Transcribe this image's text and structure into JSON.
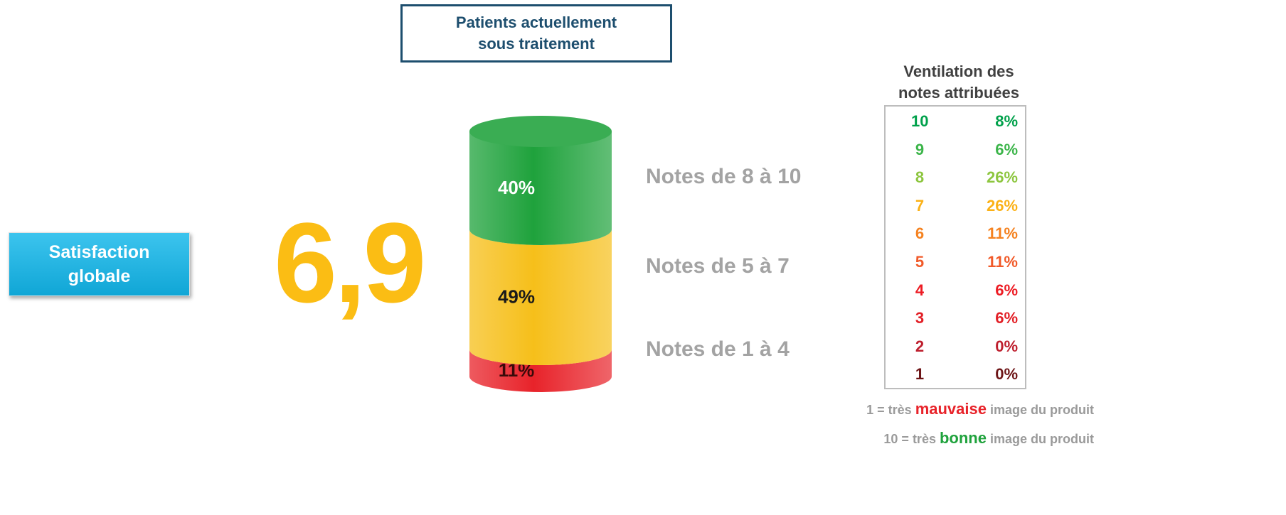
{
  "header": {
    "title_lines": [
      "Patients actuellement",
      "sous traitement"
    ]
  },
  "badge": {
    "lines": [
      "Satisfaction",
      "globale"
    ]
  },
  "score": "6,9",
  "cylinder": {
    "segments": [
      {
        "label": "Notes de 1 à 4",
        "value": 11,
        "value_label": "11%",
        "color": "#e8232a",
        "text_color": "#3a0a0a"
      },
      {
        "label": "Notes de 5 à 7",
        "value": 49,
        "value_label": "49%",
        "color": "#f6bf1a",
        "text_color": "#1a1a1a"
      },
      {
        "label": "Notes de 8 à 10",
        "value": 40,
        "value_label": "40%",
        "color": "#1fa23c",
        "text_color": "#ffffff"
      }
    ]
  },
  "breakdown": {
    "title_lines": [
      "Ventilation des",
      "notes attribuées"
    ],
    "rows": [
      {
        "note": "10",
        "share": "8%",
        "color": "#00a14b"
      },
      {
        "note": "9",
        "share": "6%",
        "color": "#3cb54a"
      },
      {
        "note": "8",
        "share": "26%",
        "color": "#8dc63f"
      },
      {
        "note": "7",
        "share": "26%",
        "color": "#fbb117"
      },
      {
        "note": "6",
        "share": "11%",
        "color": "#f58220"
      },
      {
        "note": "5",
        "share": "11%",
        "color": "#f15a29"
      },
      {
        "note": "4",
        "share": "6%",
        "color": "#ed1c24"
      },
      {
        "note": "3",
        "share": "6%",
        "color": "#e21f26"
      },
      {
        "note": "2",
        "share": "0%",
        "color": "#be1e2d"
      },
      {
        "note": "1",
        "share": "0%",
        "color": "#6d1416"
      }
    ]
  },
  "legend": [
    {
      "before": "1 = très",
      "word": "mauvaise",
      "after": "image du produit",
      "color": "#e8232a"
    },
    {
      "before": "10 = très",
      "word": "bonne",
      "after": "image du produit",
      "color": "#1fa23c"
    }
  ]
}
